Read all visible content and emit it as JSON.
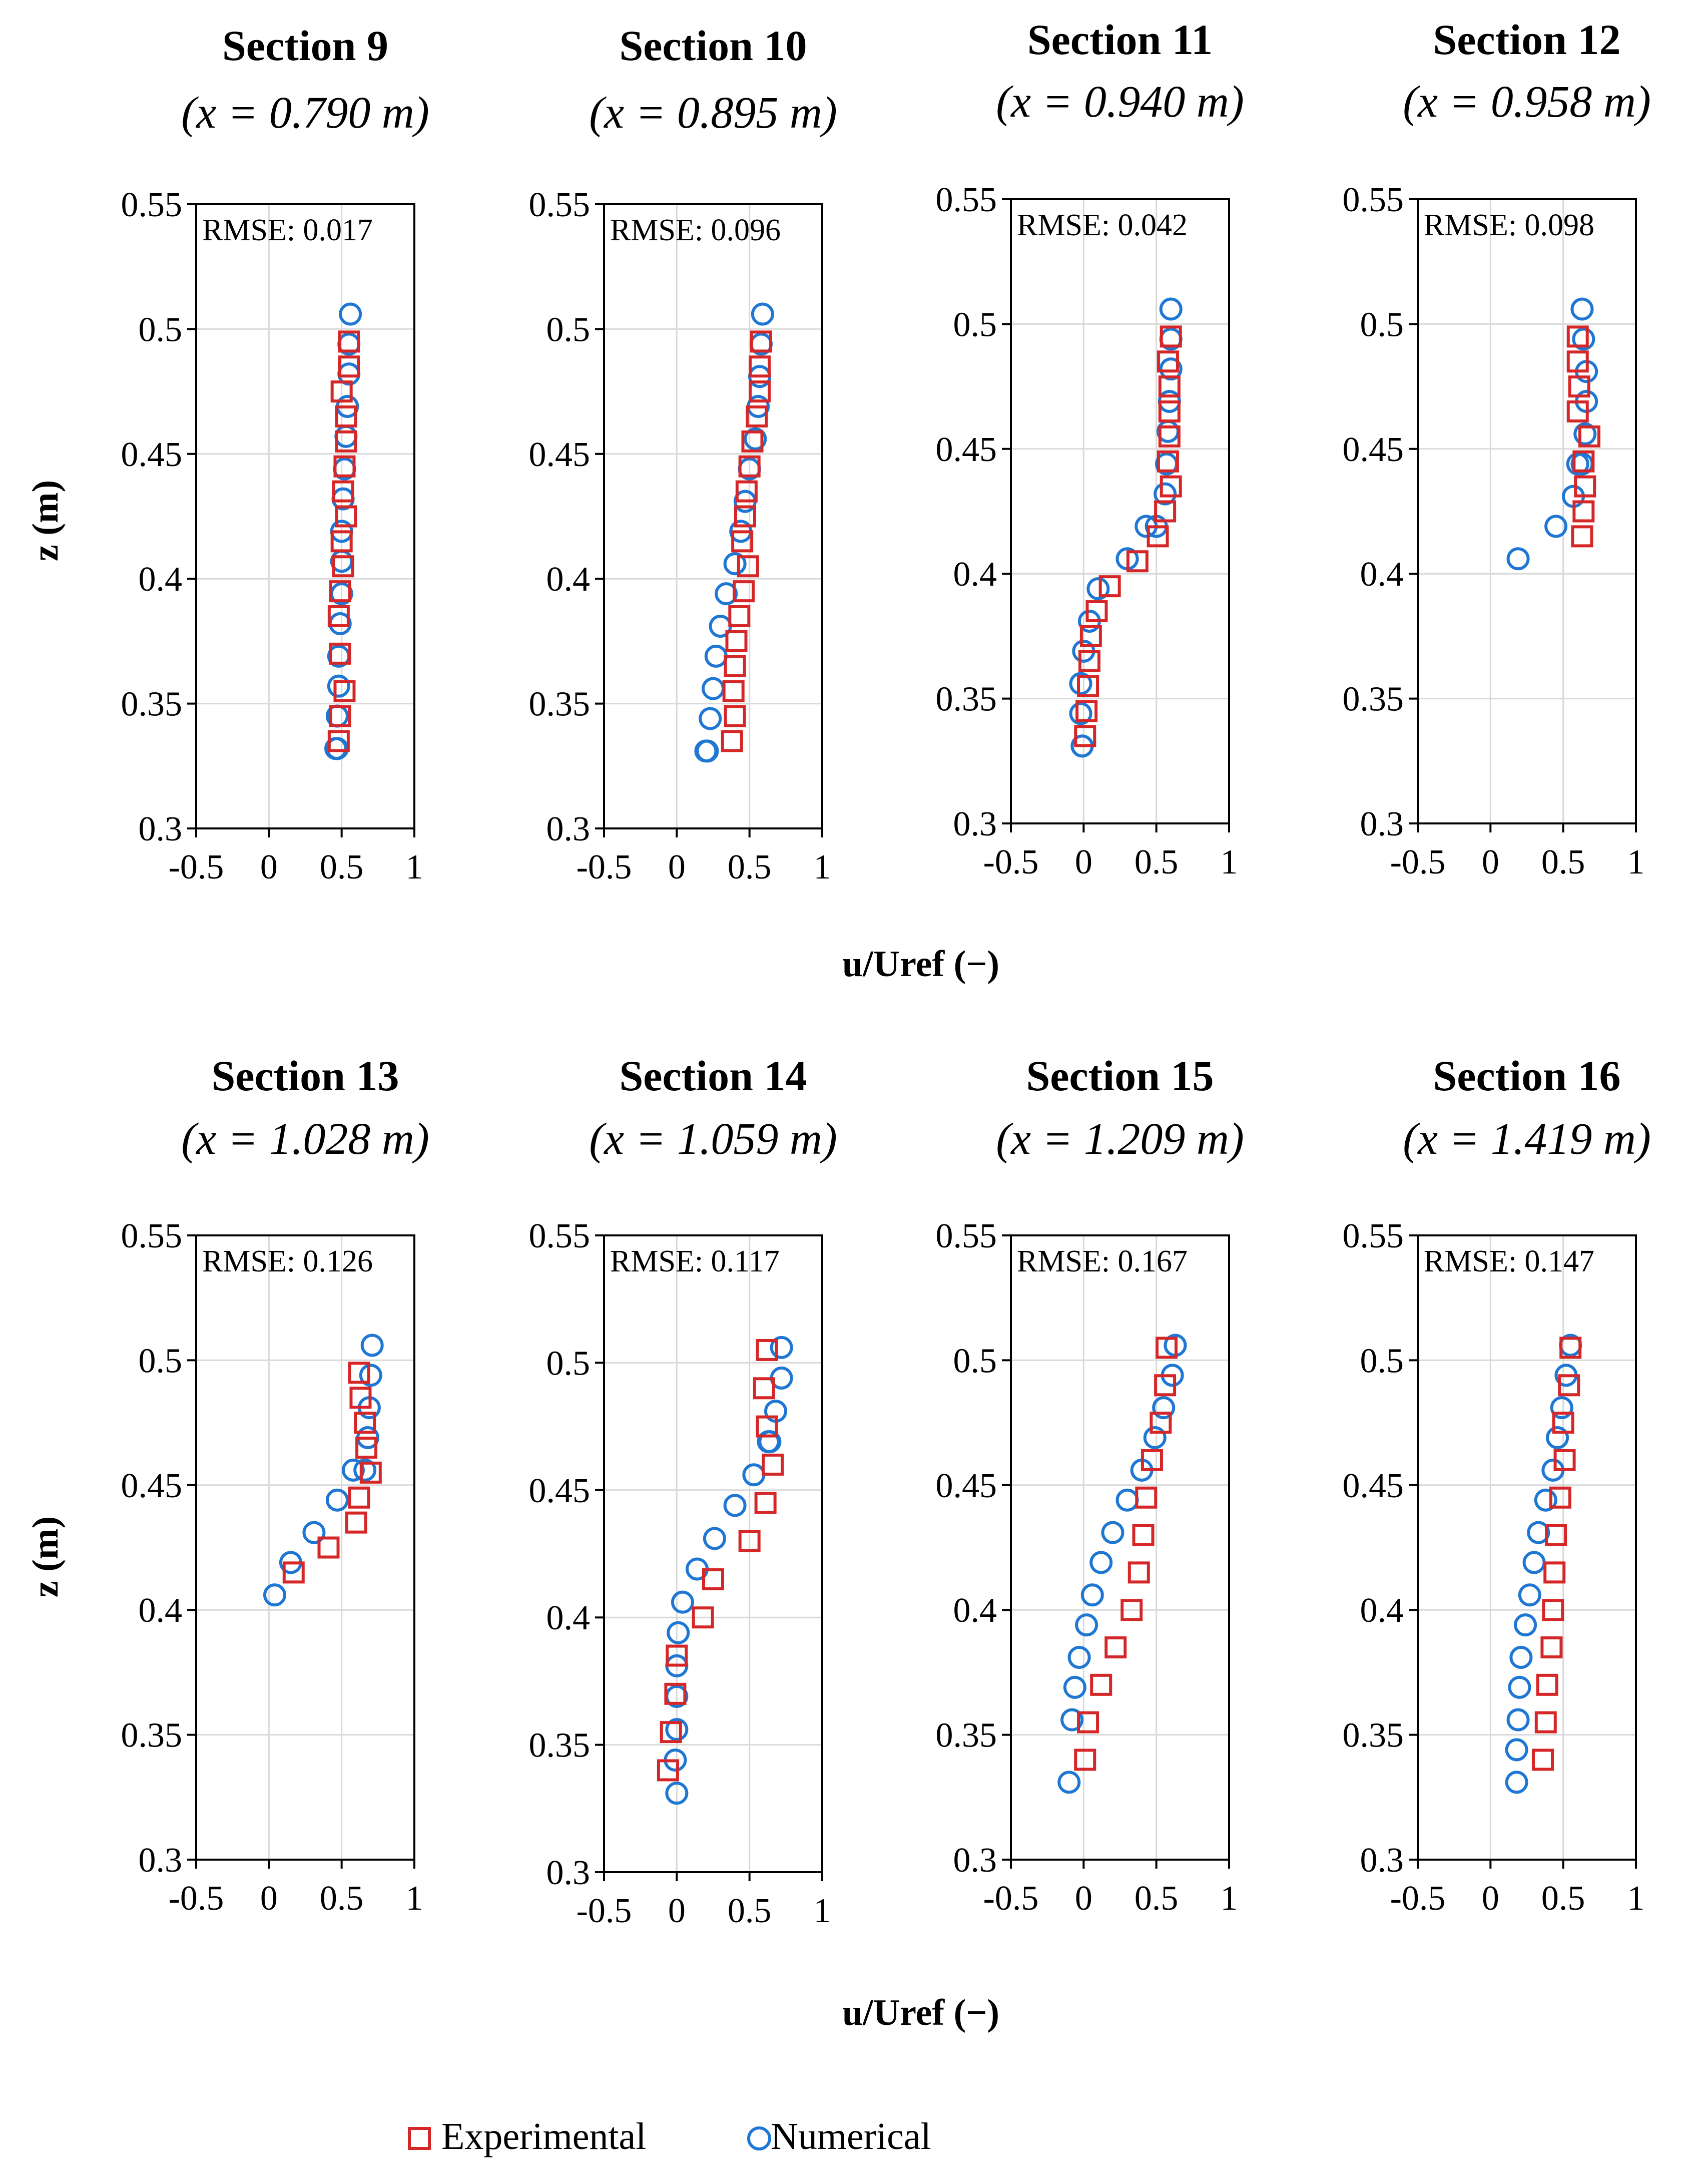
{
  "figure": {
    "xlabel": "u/Uref (−)",
    "ylabel": "z (m)",
    "legend": [
      {
        "name": "Experimental",
        "marker": "square",
        "color": "#d62728"
      },
      {
        "name": "Numerical",
        "marker": "circle",
        "color": "#1f77d4"
      }
    ],
    "colors": {
      "experimental": "#d62728",
      "numerical": "#1f77d4",
      "grid": "#d9d9d9",
      "axis": "#000000"
    }
  },
  "chart_data": [
    {
      "type": "scatter",
      "title": "Section 9",
      "subtitle": "(x = 0.790 m)",
      "annotation": "RMSE: 0.017",
      "xlim": [
        -0.5,
        1
      ],
      "ylim": [
        0.3,
        0.55
      ],
      "xticks": [
        "-0.5",
        "0",
        "0.5",
        "1"
      ],
      "yticks": [
        "0.3",
        "0.35",
        "0.4",
        "0.45",
        "0.5",
        "0.55"
      ],
      "grid": true,
      "series": [
        {
          "name": "Experimental",
          "marker": "square",
          "x": [
            0.55,
            0.55,
            0.5,
            0.53,
            0.53,
            0.52,
            0.51,
            0.53,
            0.5,
            0.51,
            0.49,
            0.48,
            0.49,
            0.52,
            0.49,
            0.48
          ],
          "y": [
            0.495,
            0.485,
            0.475,
            0.465,
            0.455,
            0.445,
            0.435,
            0.425,
            0.415,
            0.405,
            0.395,
            0.385,
            0.37,
            0.355,
            0.345,
            0.335
          ]
        },
        {
          "name": "Numerical",
          "marker": "circle",
          "x": [
            0.56,
            0.55,
            0.55,
            0.54,
            0.53,
            0.52,
            0.51,
            0.5,
            0.5,
            0.5,
            0.49,
            0.48,
            0.48,
            0.47,
            0.47,
            0.46
          ],
          "y": [
            0.506,
            0.494,
            0.482,
            0.469,
            0.457,
            0.444,
            0.432,
            0.419,
            0.407,
            0.394,
            0.382,
            0.369,
            0.357,
            0.345,
            0.332,
            0.332
          ]
        }
      ]
    },
    {
      "type": "scatter",
      "title": "Section 10",
      "subtitle": "(x = 0.895 m)",
      "annotation": "RMSE: 0.096",
      "xlim": [
        -0.5,
        1
      ],
      "ylim": [
        0.3,
        0.55
      ],
      "xticks": [
        "-0.5",
        "0",
        "0.5",
        "1"
      ],
      "yticks": [
        "0.3",
        "0.35",
        "0.4",
        "0.45",
        "0.5",
        "0.55"
      ],
      "grid": true,
      "series": [
        {
          "name": "Experimental",
          "marker": "square",
          "x": [
            0.58,
            0.57,
            0.57,
            0.55,
            0.52,
            0.5,
            0.48,
            0.47,
            0.45,
            0.49,
            0.46,
            0.43,
            0.41,
            0.4,
            0.39,
            0.4,
            0.38
          ],
          "y": [
            0.495,
            0.485,
            0.475,
            0.465,
            0.455,
            0.445,
            0.435,
            0.425,
            0.415,
            0.405,
            0.395,
            0.385,
            0.375,
            0.365,
            0.355,
            0.345,
            0.335
          ]
        },
        {
          "name": "Numerical",
          "marker": "circle",
          "x": [
            0.59,
            0.58,
            0.57,
            0.56,
            0.54,
            0.5,
            0.47,
            0.44,
            0.4,
            0.34,
            0.3,
            0.27,
            0.25,
            0.23,
            0.21,
            0.2
          ],
          "y": [
            0.506,
            0.494,
            0.481,
            0.469,
            0.456,
            0.444,
            0.431,
            0.419,
            0.406,
            0.394,
            0.381,
            0.369,
            0.356,
            0.344,
            0.331,
            0.331
          ]
        }
      ]
    },
    {
      "type": "scatter",
      "title": "Section 11",
      "subtitle": "(x = 0.940 m)",
      "annotation": "RMSE: 0.042",
      "xlim": [
        -0.5,
        1
      ],
      "ylim": [
        0.3,
        0.55
      ],
      "xticks": [
        "-0.5",
        "0",
        "0.5",
        "1"
      ],
      "yticks": [
        "0.3",
        "0.35",
        "0.4",
        "0.45",
        "0.5",
        "0.55"
      ],
      "grid": true,
      "series": [
        {
          "name": "Experimental",
          "marker": "square",
          "x": [
            0.6,
            0.58,
            0.59,
            0.59,
            0.59,
            0.58,
            0.6,
            0.56,
            0.51,
            0.37,
            0.18,
            0.09,
            0.05,
            0.04,
            0.03,
            0.02,
            0.01
          ],
          "y": [
            0.495,
            0.485,
            0.475,
            0.465,
            0.455,
            0.445,
            0.435,
            0.425,
            0.415,
            0.405,
            0.395,
            0.385,
            0.375,
            0.365,
            0.355,
            0.345,
            0.335
          ]
        },
        {
          "name": "Numerical",
          "marker": "circle",
          "x": [
            0.6,
            0.6,
            0.6,
            0.59,
            0.58,
            0.57,
            0.56,
            0.5,
            0.43,
            0.3,
            0.1,
            0.04,
            0.0,
            -0.02,
            -0.02,
            -0.01,
            -0.01
          ],
          "y": [
            0.506,
            0.494,
            0.482,
            0.469,
            0.457,
            0.444,
            0.432,
            0.419,
            0.419,
            0.406,
            0.394,
            0.381,
            0.369,
            0.356,
            0.344,
            0.331,
            0.331
          ]
        }
      ]
    },
    {
      "type": "scatter",
      "title": "Section 12",
      "subtitle": "(x = 0.958 m)",
      "annotation": "RMSE: 0.098",
      "xlim": [
        -0.5,
        1
      ],
      "ylim": [
        0.3,
        0.55
      ],
      "xticks": [
        "-0.5",
        "0",
        "0.5",
        "1"
      ],
      "yticks": [
        "0.3",
        "0.35",
        "0.4",
        "0.45",
        "0.5",
        "0.55"
      ],
      "grid": true,
      "series": [
        {
          "name": "Experimental",
          "marker": "square",
          "x": [
            0.6,
            0.6,
            0.61,
            0.6,
            0.68,
            0.64,
            0.65,
            0.64,
            0.63
          ],
          "y": [
            0.495,
            0.485,
            0.475,
            0.465,
            0.455,
            0.445,
            0.435,
            0.425,
            0.415
          ]
        },
        {
          "name": "Numerical",
          "marker": "circle",
          "x": [
            0.63,
            0.64,
            0.66,
            0.66,
            0.65,
            0.63,
            0.6,
            0.57,
            0.45,
            0.19
          ],
          "y": [
            0.506,
            0.494,
            0.481,
            0.469,
            0.456,
            0.444,
            0.444,
            0.431,
            0.419,
            0.406
          ]
        }
      ]
    },
    {
      "type": "scatter",
      "title": "Section 13",
      "subtitle": "(x = 1.028 m)",
      "annotation": "RMSE: 0.126",
      "xlim": [
        -0.5,
        1
      ],
      "ylim": [
        0.3,
        0.55
      ],
      "xticks": [
        "-0.5",
        "0",
        "0.5",
        "1"
      ],
      "yticks": [
        "0.3",
        "0.35",
        "0.4",
        "0.45",
        "0.5",
        "0.55"
      ],
      "grid": true,
      "series": [
        {
          "name": "Experimental",
          "marker": "square",
          "x": [
            0.62,
            0.63,
            0.66,
            0.67,
            0.7,
            0.62,
            0.6,
            0.41,
            0.17
          ],
          "y": [
            0.495,
            0.485,
            0.475,
            0.465,
            0.455,
            0.445,
            0.435,
            0.425,
            0.415
          ]
        },
        {
          "name": "Numerical",
          "marker": "circle",
          "x": [
            0.71,
            0.7,
            0.69,
            0.68,
            0.66,
            0.58,
            0.47,
            0.31,
            0.15,
            0.04
          ],
          "y": [
            0.506,
            0.494,
            0.481,
            0.469,
            0.456,
            0.456,
            0.444,
            0.431,
            0.419,
            0.406
          ]
        }
      ]
    },
    {
      "type": "scatter",
      "title": "Section 14",
      "subtitle": "(x = 1.059 m)",
      "annotation": "RMSE: 0.117",
      "xlim": [
        -0.5,
        1
      ],
      "ylim": [
        0.3,
        0.55
      ],
      "xticks": [
        "-0.5",
        "0",
        "0.5",
        "1"
      ],
      "yticks": [
        "0.3",
        "0.35",
        "0.4",
        "0.45",
        "0.5",
        "0.55"
      ],
      "grid": true,
      "series": [
        {
          "name": "Experimental",
          "marker": "square",
          "x": [
            0.62,
            0.6,
            0.62,
            0.66,
            0.61,
            0.5,
            0.25,
            0.18,
            0.0,
            -0.01,
            -0.04,
            -0.06
          ],
          "y": [
            0.505,
            0.49,
            0.475,
            0.46,
            0.445,
            0.43,
            0.415,
            0.4,
            0.385,
            0.37,
            0.355,
            0.34
          ]
        },
        {
          "name": "Numerical",
          "marker": "circle",
          "x": [
            0.72,
            0.72,
            0.68,
            0.64,
            0.63,
            0.53,
            0.4,
            0.26,
            0.14,
            0.04,
            0.01,
            0.0,
            0.0,
            0.0,
            -0.01,
            0.0
          ],
          "y": [
            0.506,
            0.494,
            0.481,
            0.469,
            0.469,
            0.456,
            0.444,
            0.431,
            0.419,
            0.406,
            0.394,
            0.381,
            0.369,
            0.356,
            0.344,
            0.331
          ]
        }
      ]
    },
    {
      "type": "scatter",
      "title": "Section 15",
      "subtitle": "(x = 1.209 m)",
      "annotation": "RMSE: 0.167",
      "xlim": [
        -0.5,
        1
      ],
      "ylim": [
        0.3,
        0.55
      ],
      "xticks": [
        "-0.5",
        "0",
        "0.5",
        "1"
      ],
      "yticks": [
        "0.3",
        "0.35",
        "0.4",
        "0.45",
        "0.5",
        "0.55"
      ],
      "grid": true,
      "series": [
        {
          "name": "Experimental",
          "marker": "square",
          "x": [
            0.57,
            0.56,
            0.53,
            0.47,
            0.43,
            0.41,
            0.38,
            0.33,
            0.22,
            0.12,
            0.03,
            0.01
          ],
          "y": [
            0.505,
            0.49,
            0.475,
            0.46,
            0.445,
            0.43,
            0.415,
            0.4,
            0.385,
            0.37,
            0.355,
            0.34
          ]
        },
        {
          "name": "Numerical",
          "marker": "circle",
          "x": [
            0.63,
            0.61,
            0.55,
            0.49,
            0.4,
            0.3,
            0.2,
            0.12,
            0.06,
            0.02,
            -0.03,
            -0.06,
            -0.08,
            -0.1
          ],
          "y": [
            0.506,
            0.494,
            0.481,
            0.469,
            0.456,
            0.444,
            0.431,
            0.419,
            0.406,
            0.394,
            0.381,
            0.369,
            0.356,
            0.331
          ]
        }
      ]
    },
    {
      "type": "scatter",
      "title": "Section 16",
      "subtitle": "(x = 1.419 m)",
      "annotation": "RMSE: 0.147",
      "xlim": [
        -0.5,
        1
      ],
      "ylim": [
        0.3,
        0.55
      ],
      "xticks": [
        "-0.5",
        "0",
        "0.5",
        "1"
      ],
      "yticks": [
        "0.3",
        "0.35",
        "0.4",
        "0.45",
        "0.5",
        "0.55"
      ],
      "grid": true,
      "series": [
        {
          "name": "Experimental",
          "marker": "square",
          "x": [
            0.55,
            0.54,
            0.5,
            0.51,
            0.48,
            0.45,
            0.44,
            0.43,
            0.42,
            0.39,
            0.38,
            0.36
          ],
          "y": [
            0.505,
            0.49,
            0.475,
            0.46,
            0.445,
            0.43,
            0.415,
            0.4,
            0.385,
            0.37,
            0.355,
            0.34
          ]
        },
        {
          "name": "Numerical",
          "marker": "circle",
          "x": [
            0.55,
            0.52,
            0.49,
            0.46,
            0.43,
            0.38,
            0.33,
            0.3,
            0.27,
            0.24,
            0.21,
            0.2,
            0.19,
            0.18,
            0.18
          ],
          "y": [
            0.506,
            0.494,
            0.481,
            0.469,
            0.456,
            0.444,
            0.431,
            0.419,
            0.406,
            0.394,
            0.381,
            0.369,
            0.356,
            0.344,
            0.331
          ]
        }
      ]
    }
  ]
}
